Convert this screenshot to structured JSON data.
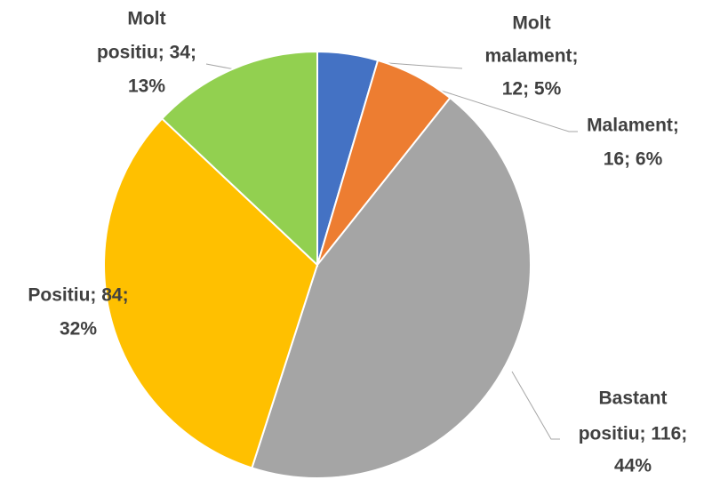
{
  "chart_data": {
    "type": "pie",
    "values": [
      12,
      16,
      116,
      84,
      34
    ],
    "value_labels": [
      [
        "Molt",
        "malament;",
        "12; 5%"
      ],
      [
        "Malament;",
        "16; 6%"
      ],
      [
        "Bastant",
        "positiu; 116;",
        "44%"
      ],
      [
        "Positiu; 84;",
        "32%"
      ],
      [
        "Molt",
        "positiu; 34;",
        "13%"
      ]
    ],
    "colors": [
      "#4472c4",
      "#ed7d31",
      "#a5a5a5",
      "#ffc000",
      "#92d050"
    ]
  }
}
